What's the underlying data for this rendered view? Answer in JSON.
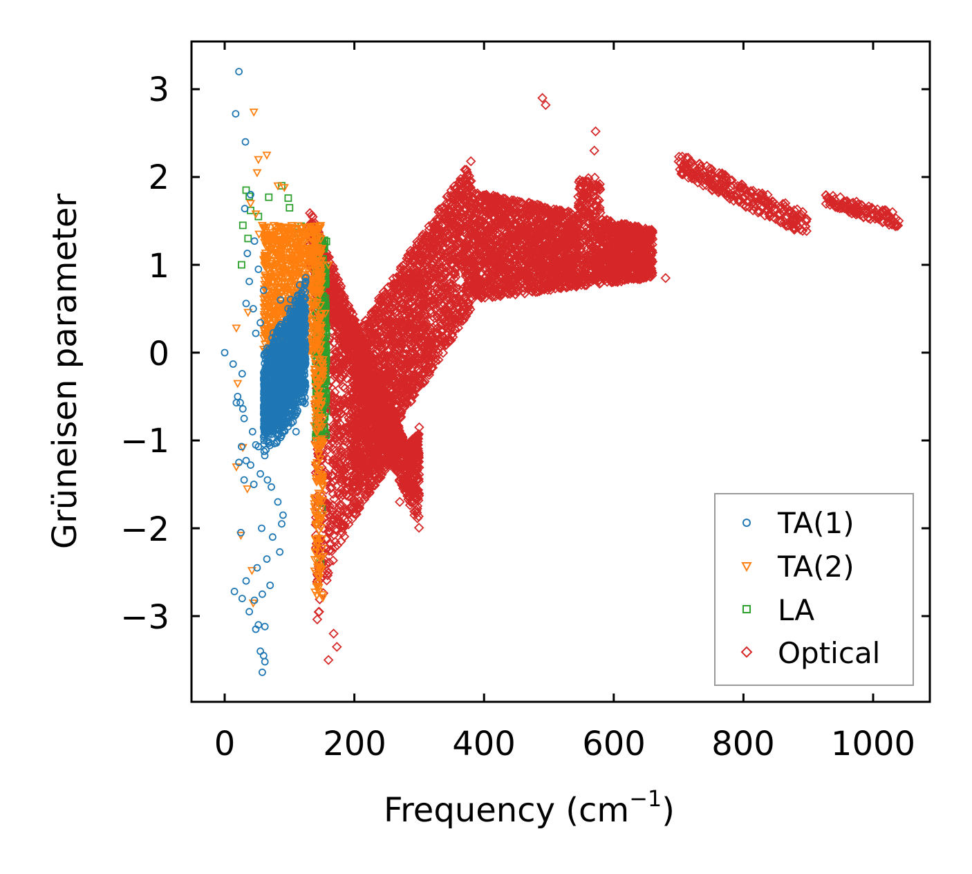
{
  "chart_data": {
    "type": "scatter",
    "title": "",
    "xlabel": "Frequency (cm",
    "xlabel_sup": "−1",
    "xlabel_close": ")",
    "ylabel": "Grüneisen parameter",
    "xlim": [
      -52,
      1085
    ],
    "ylim": [
      -3.9,
      3.55
    ],
    "xticks": [
      0,
      200,
      400,
      600,
      800,
      1000
    ],
    "xtick_labels": [
      "0",
      "200",
      "400",
      "600",
      "800",
      "1000"
    ],
    "yticks": [
      -3,
      -2,
      -1,
      0,
      1,
      2,
      3
    ],
    "ytick_labels": [
      "−3",
      "−2",
      "−1",
      "0",
      "1",
      "2",
      "3"
    ],
    "legend_position": "lower-right",
    "series": [
      {
        "name": "TA(1)",
        "marker": "circle",
        "color": "#1f77b4",
        "points": [
          [
            0,
            0
          ],
          [
            22,
            3.2
          ],
          [
            17,
            2.72
          ],
          [
            32,
            2.4
          ],
          [
            31,
            1.64
          ],
          [
            40,
            1.8
          ],
          [
            35,
            1.13
          ],
          [
            46,
            1.27
          ],
          [
            38,
            0.81
          ],
          [
            33,
            0.56
          ],
          [
            52,
            0.95
          ],
          [
            44,
            0.5
          ],
          [
            55,
            0.34
          ],
          [
            60,
            0.71
          ],
          [
            48,
            0.22
          ],
          [
            13,
            -0.13
          ],
          [
            27,
            -0.24
          ],
          [
            20,
            -0.5
          ],
          [
            24,
            -0.57
          ],
          [
            18,
            -0.57
          ],
          [
            30,
            -0.75
          ],
          [
            28,
            -0.64
          ],
          [
            43,
            -0.9
          ],
          [
            52,
            -1.07
          ],
          [
            26,
            -1.07
          ],
          [
            48,
            -1.05
          ],
          [
            33,
            -1.23
          ],
          [
            22,
            -1.25
          ],
          [
            40,
            -1.28
          ],
          [
            55,
            -1.38
          ],
          [
            30,
            -1.45
          ],
          [
            45,
            -1.5
          ],
          [
            66,
            -1.45
          ],
          [
            72,
            -1.53
          ],
          [
            82,
            -1.7
          ],
          [
            90,
            -1.85
          ],
          [
            25,
            -2.05
          ],
          [
            57,
            -2.0
          ],
          [
            74,
            -2.1
          ],
          [
            85,
            -2.27
          ],
          [
            88,
            -1.95
          ],
          [
            50,
            -2.45
          ],
          [
            65,
            -2.35
          ],
          [
            33,
            -2.6
          ],
          [
            70,
            -2.65
          ],
          [
            15,
            -2.72
          ],
          [
            27,
            -2.8
          ],
          [
            46,
            -2.82
          ],
          [
            58,
            -2.75
          ],
          [
            38,
            -2.95
          ],
          [
            52,
            -3.1
          ],
          [
            62,
            -3.12
          ],
          [
            48,
            -3.15
          ],
          [
            55,
            -3.4
          ],
          [
            60,
            -3.45
          ],
          [
            62,
            -3.52
          ],
          [
            58,
            -3.64
          ],
          [
            98,
            -0.2
          ],
          [
            115,
            0.5
          ],
          [
            105,
            -0.6
          ],
          [
            120,
            0.1
          ],
          [
            92,
            0.3
          ],
          [
            110,
            -0.9
          ],
          [
            86,
            0.6
          ]
        ],
        "dense_cluster": {
          "x_range": [
            60,
            125
          ],
          "y_range": [
            -1.0,
            0.72
          ],
          "count": 1500
        }
      },
      {
        "name": "TA(2)",
        "marker": "triangle-down",
        "color": "#ff7f0e",
        "points": [
          [
            45,
            2.74
          ],
          [
            52,
            2.2
          ],
          [
            65,
            2.25
          ],
          [
            50,
            2.05
          ],
          [
            40,
            1.7
          ],
          [
            48,
            1.58
          ],
          [
            58,
            1.45
          ],
          [
            82,
            1.9
          ],
          [
            92,
            1.88
          ],
          [
            70,
            1.25
          ],
          [
            62,
            1.1
          ],
          [
            53,
            1.35
          ],
          [
            18,
            0.28
          ],
          [
            36,
            0.46
          ],
          [
            20,
            -0.35
          ],
          [
            28,
            -1.08
          ],
          [
            18,
            -1.3
          ],
          [
            35,
            -1.55
          ],
          [
            25,
            -2.08
          ],
          [
            42,
            -2.48
          ],
          [
            44,
            -2.85
          ],
          [
            140,
            1.2
          ],
          [
            148,
            0.9
          ],
          [
            145,
            -0.35
          ],
          [
            150,
            -0.55
          ],
          [
            142,
            -1.25
          ],
          [
            145,
            -1.6
          ],
          [
            142,
            -1.95
          ],
          [
            148,
            -2.35
          ],
          [
            145,
            -2.72
          ],
          [
            160,
            1.0
          ],
          [
            155,
            0.45
          ]
        ],
        "dense_cluster": {
          "x_range": [
            60,
            150
          ],
          "y_range": [
            0.0,
            1.45
          ],
          "count": 900
        },
        "band": {
          "x_range": [
            138,
            152
          ],
          "y_range": [
            -2.8,
            0.2
          ],
          "count": 160
        }
      },
      {
        "name": "LA",
        "marker": "square",
        "color": "#2ca02c",
        "points": [
          [
            33,
            1.85
          ],
          [
            38,
            1.78
          ],
          [
            40,
            1.62
          ],
          [
            28,
            1.45
          ],
          [
            52,
            1.55
          ],
          [
            36,
            1.3
          ],
          [
            26,
            1.0
          ],
          [
            68,
            1.77
          ],
          [
            88,
            1.9
          ],
          [
            98,
            1.76
          ],
          [
            100,
            1.65
          ],
          [
            113,
            1.37
          ],
          [
            118,
            1.44
          ],
          [
            150,
            -1.78
          ],
          [
            148,
            -2.4
          ],
          [
            150,
            0.1
          ],
          [
            152,
            -0.3
          ],
          [
            150,
            -0.95
          ]
        ],
        "band": {
          "x_range": [
            140,
            157
          ],
          "y_range": [
            -1.0,
            1.3
          ],
          "count": 320
        }
      },
      {
        "name": "Optical",
        "marker": "diamond",
        "color": "#d62728",
        "points": [
          [
            490,
            2.9
          ],
          [
            495,
            2.82
          ],
          [
            572,
            2.52
          ],
          [
            570,
            2.3
          ],
          [
            680,
            0.85
          ],
          [
            460,
            0.7
          ],
          [
            410,
            1.2
          ],
          [
            270,
            -1.7
          ],
          [
            160,
            -3.5
          ],
          [
            173,
            -3.35
          ],
          [
            168,
            -3.2
          ],
          [
            300,
            -0.85
          ]
        ],
        "regions": [
          {
            "note": "upper wedge",
            "x_range": [
              130,
              300
            ],
            "y_upper": [
              1.65,
              -1.4
            ],
            "y_lower": [
              1.0,
              -2.0
            ]
          },
          {
            "note": "lower wedge",
            "x_range": [
              140,
              300
            ],
            "y_lower": [
              -3.45,
              -0.9
            ]
          },
          {
            "note": "rising band",
            "x_range": [
              200,
              380
            ],
            "y_lower": [
              -1.6,
              0.5
            ],
            "y_upper": [
              0.2,
              2.2
            ]
          },
          {
            "note": "plateau",
            "x_range": [
              380,
              660
            ],
            "y_lower": [
              0.6,
              0.85
            ],
            "y_upper": [
              1.85,
              1.4
            ]
          },
          {
            "note": "high branch 1",
            "x_range": [
              700,
              900
            ],
            "y_start": 2.15,
            "y_end": 1.45,
            "spread": 0.13
          },
          {
            "note": "high branch 2",
            "x_range": [
              925,
              1040
            ],
            "y_start": 1.75,
            "y_end": 1.5,
            "spread": 0.08
          }
        ]
      }
    ]
  }
}
